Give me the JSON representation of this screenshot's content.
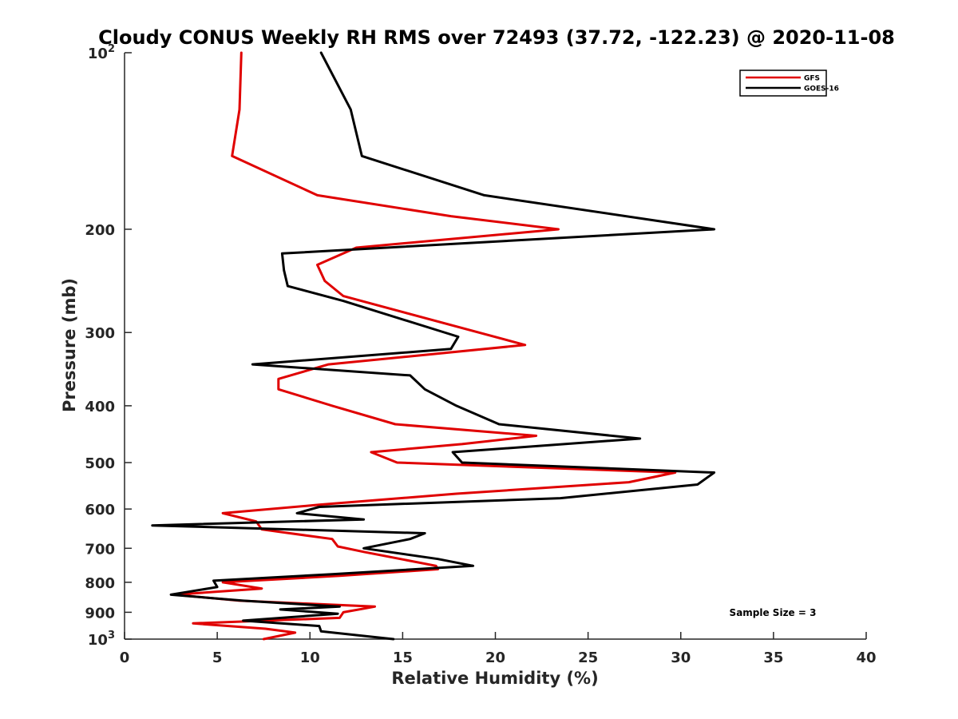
{
  "chart_data": {
    "type": "line",
    "title": "Cloudy CONUS Weekly RH RMS over 72493 (37.72, -122.23) @ 2020-11-08",
    "xlabel": "Relative Humidity (%)",
    "ylabel": "Pressure (mb)",
    "xlim": [
      0,
      40
    ],
    "ylim": [
      100,
      1000
    ],
    "yscale": "log",
    "y_inverted": true,
    "x_ticks": [
      0,
      5,
      10,
      15,
      20,
      25,
      30,
      35,
      40
    ],
    "y_ticks": [
      {
        "value": 100,
        "base": "10",
        "exp": "2"
      },
      {
        "value": 200,
        "label": "200"
      },
      {
        "value": 300,
        "label": "300"
      },
      {
        "value": 400,
        "label": "400"
      },
      {
        "value": 500,
        "label": "500"
      },
      {
        "value": 600,
        "label": "600"
      },
      {
        "value": 700,
        "label": "700"
      },
      {
        "value": 800,
        "label": "800"
      },
      {
        "value": 900,
        "label": "900"
      },
      {
        "value": 1000,
        "base": "10",
        "exp": "3"
      }
    ],
    "grid": false,
    "legend_position": "top-right",
    "annotation": "Sample Size = 3",
    "series": [
      {
        "name": "GFS",
        "color": "#e00000",
        "points": [
          [
            6.3,
            100
          ],
          [
            6.2,
            125
          ],
          [
            5.8,
            150
          ],
          [
            10.4,
            175
          ],
          [
            17.6,
            190
          ],
          [
            23.4,
            200
          ],
          [
            12.5,
            215
          ],
          [
            10.4,
            230
          ],
          [
            10.8,
            245
          ],
          [
            11.8,
            260
          ],
          [
            21.6,
            315
          ],
          [
            11.0,
            340
          ],
          [
            8.3,
            360
          ],
          [
            8.3,
            375
          ],
          [
            11.2,
            400
          ],
          [
            14.6,
            430
          ],
          [
            22.2,
            450
          ],
          [
            18.2,
            465
          ],
          [
            13.3,
            480
          ],
          [
            14.7,
            500
          ],
          [
            29.7,
            520
          ],
          [
            27.2,
            540
          ],
          [
            17.9,
            565
          ],
          [
            10.5,
            590
          ],
          [
            5.3,
            610
          ],
          [
            7.1,
            630
          ],
          [
            7.4,
            650
          ],
          [
            11.2,
            675
          ],
          [
            11.5,
            695
          ],
          [
            12.9,
            710
          ],
          [
            16.8,
            750
          ],
          [
            16.9,
            760
          ],
          [
            11.6,
            780
          ],
          [
            5.3,
            800
          ],
          [
            7.4,
            820
          ],
          [
            2.7,
            840
          ],
          [
            6.2,
            860
          ],
          [
            13.5,
            880
          ],
          [
            11.8,
            900
          ],
          [
            11.6,
            920
          ],
          [
            3.7,
            940
          ],
          [
            7.6,
            960
          ],
          [
            9.2,
            975
          ],
          [
            7.5,
            1000
          ]
        ]
      },
      {
        "name": "GOES-16",
        "color": "#000000",
        "points": [
          [
            10.6,
            100
          ],
          [
            12.2,
            125
          ],
          [
            12.8,
            150
          ],
          [
            19.4,
            175
          ],
          [
            31.8,
            200
          ],
          [
            8.5,
            220
          ],
          [
            8.6,
            235
          ],
          [
            8.8,
            250
          ],
          [
            11.8,
            265
          ],
          [
            18.0,
            305
          ],
          [
            17.6,
            320
          ],
          [
            6.9,
            340
          ],
          [
            15.4,
            355
          ],
          [
            16.2,
            375
          ],
          [
            17.9,
            400
          ],
          [
            20.2,
            430
          ],
          [
            27.8,
            455
          ],
          [
            17.7,
            480
          ],
          [
            18.2,
            500
          ],
          [
            31.8,
            520
          ],
          [
            30.9,
            545
          ],
          [
            23.5,
            575
          ],
          [
            10.5,
            595
          ],
          [
            9.3,
            610
          ],
          [
            12.9,
            625
          ],
          [
            1.5,
            640
          ],
          [
            16.2,
            660
          ],
          [
            15.4,
            675
          ],
          [
            12.9,
            700
          ],
          [
            16.9,
            730
          ],
          [
            18.8,
            750
          ],
          [
            11.2,
            775
          ],
          [
            4.8,
            795
          ],
          [
            5.0,
            815
          ],
          [
            2.5,
            840
          ],
          [
            6.4,
            860
          ],
          [
            11.6,
            880
          ],
          [
            8.4,
            890
          ],
          [
            11.5,
            905
          ],
          [
            6.4,
            930
          ],
          [
            10.5,
            950
          ],
          [
            10.6,
            970
          ],
          [
            14.5,
            1000
          ]
        ]
      }
    ]
  }
}
